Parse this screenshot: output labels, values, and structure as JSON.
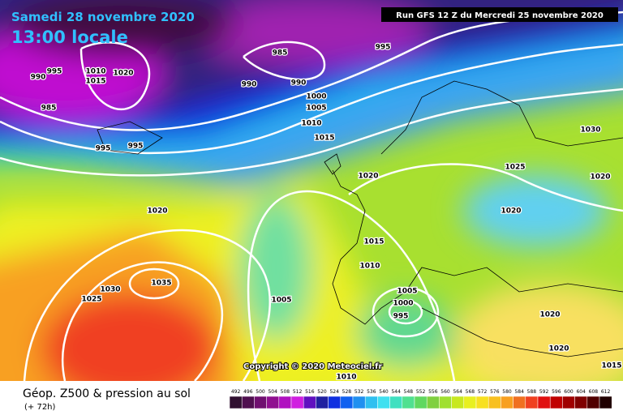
{
  "header": {
    "date": "Samedi 28 novembre 2020",
    "time": "13:00 locale",
    "run": "Run GFS 12 Z du Mercredi 25 novembre 2020"
  },
  "isobar_labels": [
    "985",
    "995",
    "990",
    "995",
    "1010",
    "1015",
    "1020",
    "985",
    "990",
    "990",
    "1000",
    "1005",
    "1010",
    "1015",
    "995",
    "995",
    "1030",
    "1025",
    "1020",
    "1020",
    "1020",
    "1020",
    "1015",
    "1010",
    "1035",
    "1030",
    "1025",
    "1005",
    "1005",
    "1000",
    "995",
    "1020",
    "1020",
    "1015",
    "1010"
  ],
  "copyright": "Copyright © 2020 Meteociel.fr",
  "footer": {
    "title": "Géop. Z500 & pression au sol",
    "subtitle": "(+ 72h)"
  },
  "colorbar": {
    "levels": [
      492,
      496,
      500,
      504,
      508,
      512,
      516,
      520,
      524,
      528,
      532,
      536,
      540,
      544,
      548,
      552,
      556,
      560,
      564,
      568,
      572,
      576,
      580,
      584,
      588,
      592,
      596,
      600,
      604,
      608,
      612
    ],
    "colors": [
      "#301030",
      "#501050",
      "#701070",
      "#901090",
      "#b010c0",
      "#d020e0",
      "#6010c0",
      "#2020a0",
      "#1030e0",
      "#1060f0",
      "#2090f0",
      "#30c0f0",
      "#40e0f0",
      "#40e0c0",
      "#50e090",
      "#60d860",
      "#80d040",
      "#a0e030",
      "#c8e820",
      "#e8f020",
      "#f8e020",
      "#f8c020",
      "#f8a020",
      "#f07020",
      "#f04020",
      "#e01010",
      "#c00000",
      "#a00000",
      "#800000",
      "#500000",
      "#200000"
    ]
  }
}
